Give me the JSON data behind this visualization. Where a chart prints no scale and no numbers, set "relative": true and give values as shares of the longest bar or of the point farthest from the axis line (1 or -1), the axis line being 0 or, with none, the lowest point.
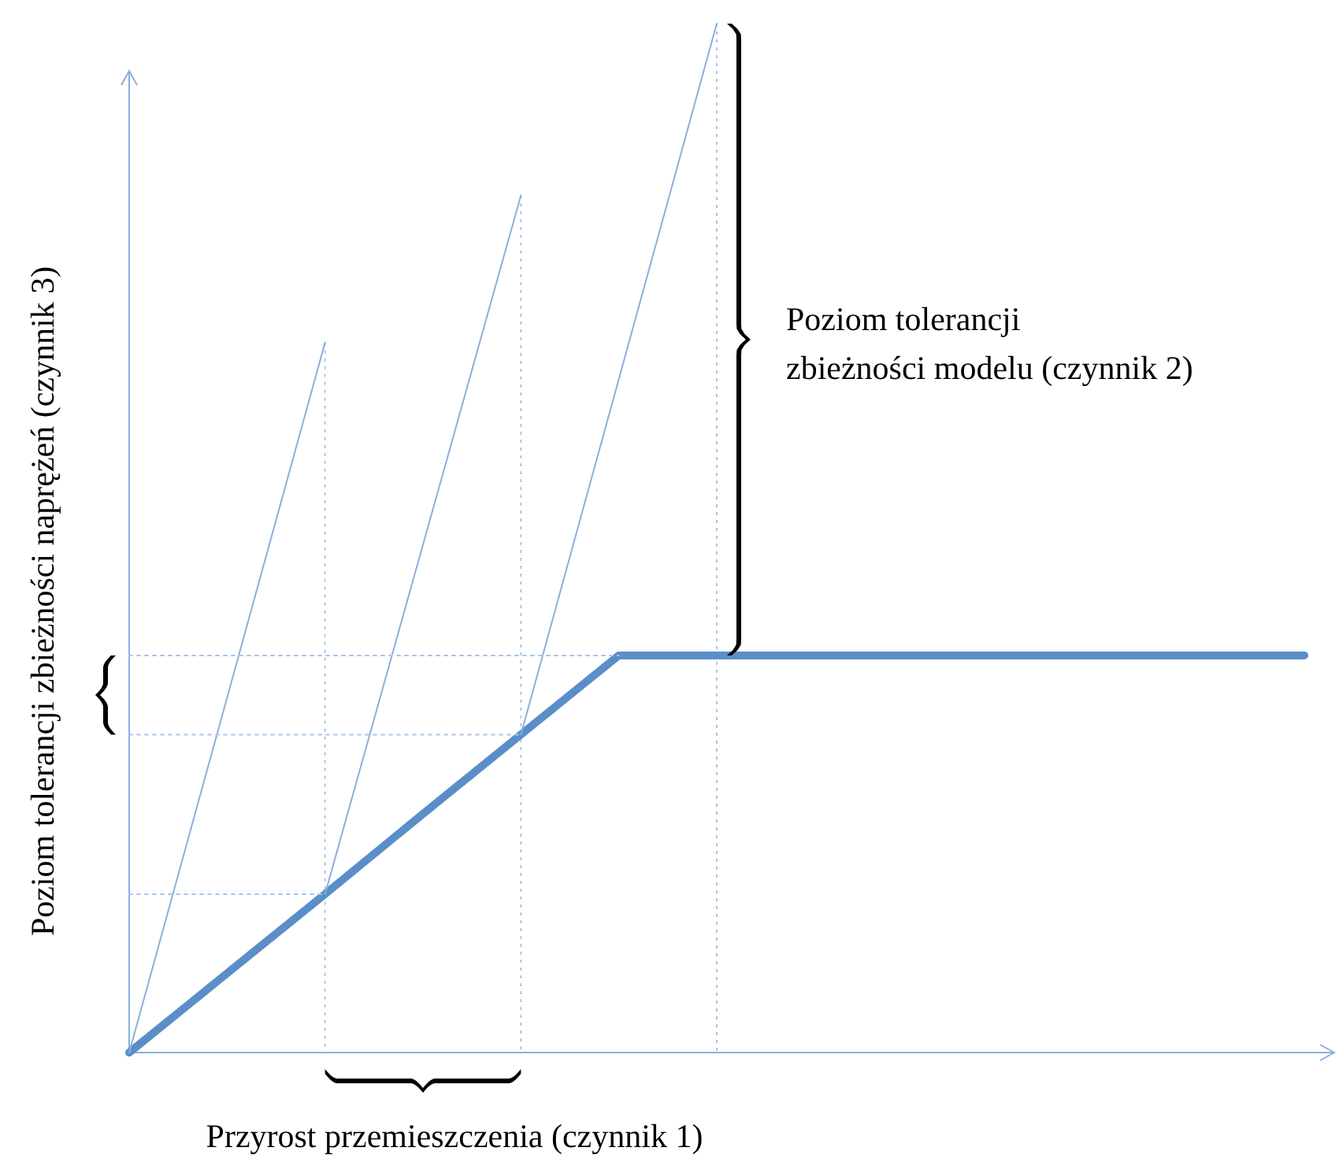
{
  "chart_data": {
    "type": "line",
    "relative": true,
    "xlabel": "Przyrost przemieszczenia (czynnik 1)",
    "ylabel": "Poziom tolerancji zbieżności naprężeń (czynnik 3)",
    "annotations": [
      "Poziom tolerancji zbieżności modelu (czynnik 2)"
    ],
    "categories": [
      null,
      null,
      null,
      null,
      null,
      null,
      null,
      null,
      null,
      null,
      null,
      null,
      null
    ],
    "series": [
      {
        "color": "#5b8ec8",
        "values": [
          0,
          0.077,
          0.154,
          0.232,
          0.309,
          0.386,
          0.386,
          0.386,
          0.386,
          0.386,
          0.386,
          0.386,
          0.386
        ]
      },
      {
        "color": "#8ab0dc",
        "values": [
          0,
          0.345,
          0.69,
          null,
          null,
          null,
          null,
          null,
          null,
          null,
          null,
          null,
          null
        ]
      },
      {
        "color": "#8ab0dc",
        "values": [
          null,
          null,
          0.154,
          0.4935,
          0.833,
          null,
          null,
          null,
          null,
          null,
          null,
          null,
          null
        ]
      },
      {
        "color": "#8ab0dc",
        "values": [
          null,
          null,
          null,
          null,
          0.309,
          0.6545,
          1,
          null,
          null,
          null,
          null,
          null,
          null
        ]
      },
      {
        "color": "#a9c6e8",
        "line_style": "dotted",
        "values": [
          0.154,
          0.154,
          0.154,
          null,
          null,
          null,
          null,
          null,
          null,
          null,
          null,
          null,
          null
        ]
      },
      {
        "color": "#a9c6e8",
        "line_style": "dotted",
        "values": [
          0.309,
          0.309,
          0.309,
          0.309,
          0.309,
          null,
          null,
          null,
          null,
          null,
          null,
          null,
          null
        ]
      },
      {
        "color": "#a9c6e8",
        "line_style": "dotted",
        "values": [
          0.386,
          0.386,
          0.386,
          0.386,
          0.386,
          0.386,
          null,
          null,
          null,
          null,
          null,
          null,
          null
        ]
      }
    ]
  }
}
